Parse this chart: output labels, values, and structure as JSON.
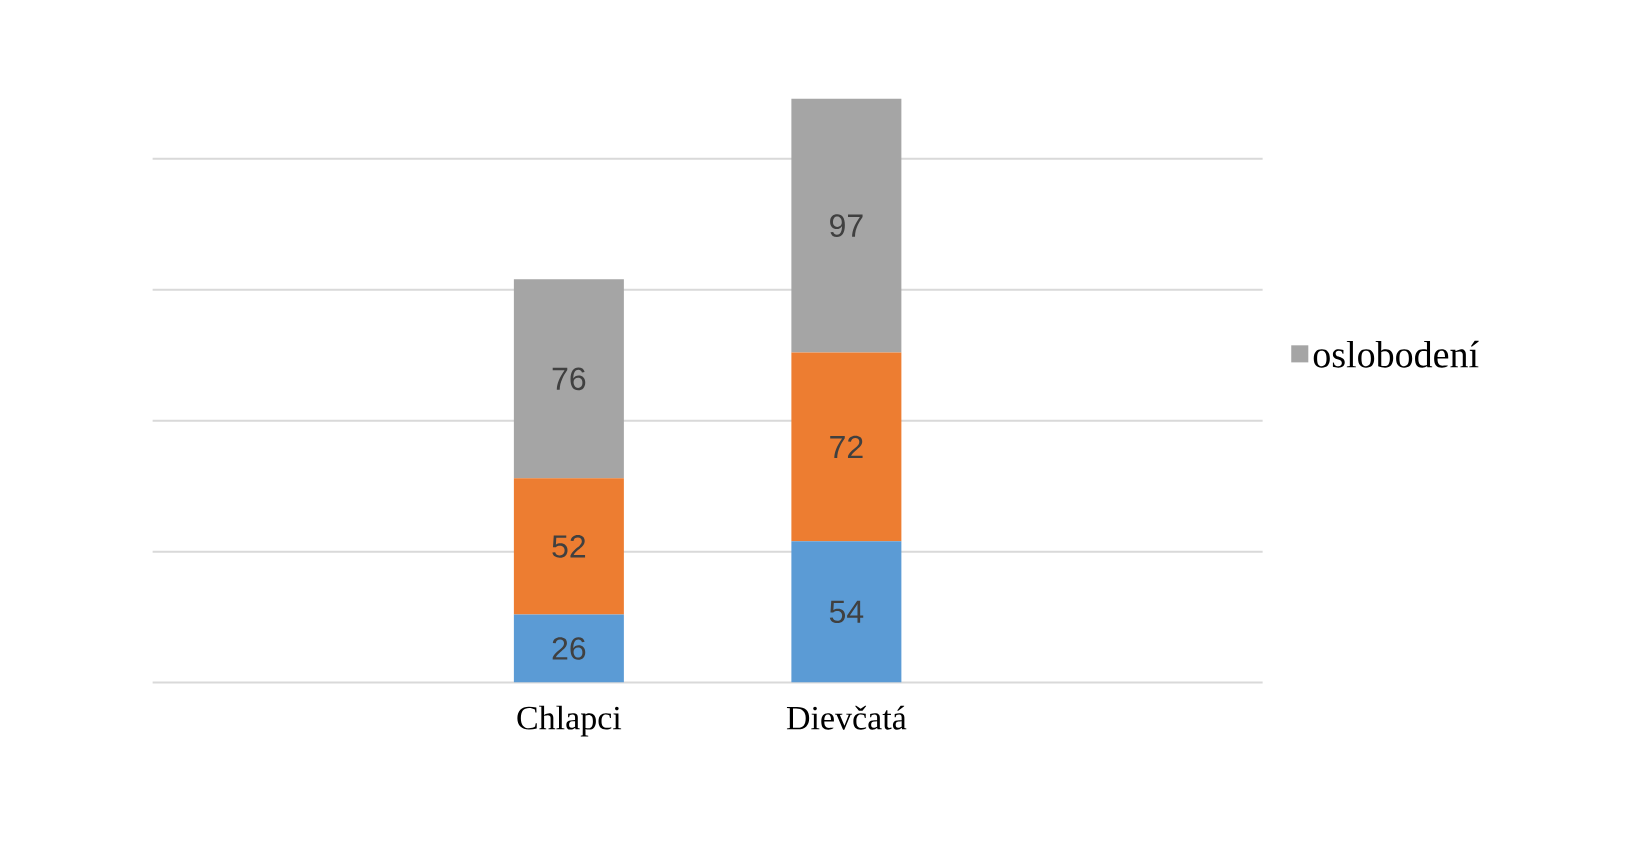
{
  "chart_data": {
    "type": "bar",
    "stacked": true,
    "categories": [
      "Chlapci",
      "Dievčatá"
    ],
    "series": [
      {
        "color": "#5b9bd5",
        "values": [
          26,
          54
        ]
      },
      {
        "color": "#ed7d31",
        "values": [
          52,
          72
        ]
      },
      {
        "name": "oslobodení",
        "color": "#a5a5a5",
        "values": [
          76,
          97
        ]
      }
    ],
    "tick_labels": "x",
    "grid": "y",
    "legend": "right",
    "data_labels": true
  }
}
